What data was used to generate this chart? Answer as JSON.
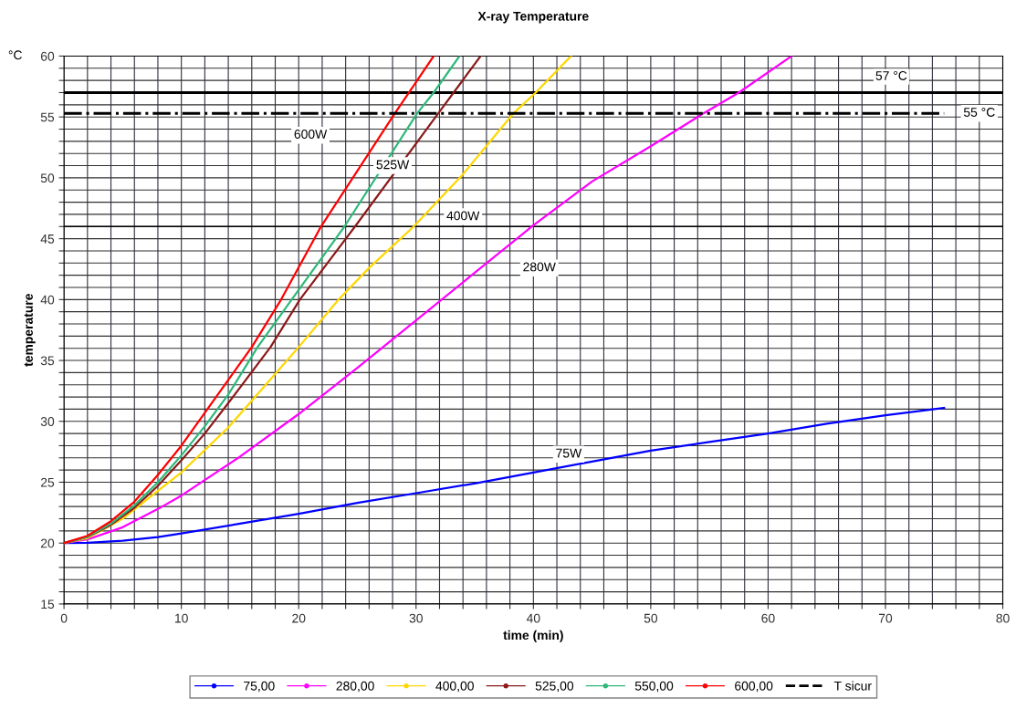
{
  "chart_data": {
    "type": "line",
    "title": "X-ray Temperature",
    "xlabel": "time (min)",
    "ylabel": "temperature",
    "xlim": [
      0,
      80
    ],
    "ylim": [
      15,
      60
    ],
    "xticks": [
      0,
      {
        "value": 2,
        "label": null
      },
      {
        "value": 4,
        "label": null
      },
      {
        "value": 6,
        "label": null
      },
      {
        "value": 8,
        "label": null
      },
      10,
      {
        "value": 12,
        "label": null
      },
      {
        "value": 14,
        "label": null
      },
      {
        "value": 16,
        "label": null
      },
      {
        "value": 18,
        "label": null
      },
      20,
      {
        "value": 22,
        "label": null
      },
      {
        "value": 24,
        "label": null
      },
      {
        "value": 26,
        "label": null
      },
      {
        "value": 28,
        "label": null
      },
      30,
      {
        "value": 32,
        "label": null
      },
      {
        "value": 34,
        "label": null
      },
      {
        "value": 36,
        "label": null
      },
      {
        "value": 38,
        "label": null
      },
      40,
      {
        "value": 42,
        "label": null
      },
      {
        "value": 44,
        "label": null
      },
      {
        "value": 46,
        "label": null
      },
      {
        "value": 48,
        "label": null
      },
      50,
      {
        "value": 52,
        "label": null
      },
      {
        "value": 54,
        "label": null
      },
      {
        "value": 56,
        "label": null
      },
      {
        "value": 58,
        "label": null
      },
      60,
      {
        "value": 62,
        "label": null
      },
      {
        "value": 64,
        "label": null
      },
      {
        "value": 66,
        "label": null
      },
      {
        "value": 68,
        "label": null
      },
      70,
      {
        "value": 72,
        "label": null
      },
      {
        "value": 74,
        "label": null
      },
      {
        "value": 76,
        "label": null
      },
      {
        "value": 78,
        "label": null
      },
      80
    ],
    "yticks": [
      15,
      {
        "value": 16,
        "label": null
      },
      {
        "value": 17,
        "label": null
      },
      {
        "value": 18,
        "label": null
      },
      {
        "value": 19,
        "label": null
      },
      20,
      {
        "value": 21,
        "label": null
      },
      {
        "value": 22,
        "label": null
      },
      {
        "value": 23,
        "label": null
      },
      {
        "value": 24,
        "label": null
      },
      25,
      {
        "value": 26,
        "label": null
      },
      {
        "value": 27,
        "label": null
      },
      {
        "value": 28,
        "label": null
      },
      {
        "value": 29,
        "label": null
      },
      30,
      {
        "value": 31,
        "label": null
      },
      {
        "value": 32,
        "label": null
      },
      {
        "value": 33,
        "label": null
      },
      {
        "value": 34,
        "label": null
      },
      35,
      {
        "value": 36,
        "label": null
      },
      {
        "value": 37,
        "label": null
      },
      {
        "value": 38,
        "label": null
      },
      {
        "value": 39,
        "label": null
      },
      40,
      {
        "value": 41,
        "label": null
      },
      {
        "value": 42,
        "label": null
      },
      {
        "value": 43,
        "label": null
      },
      {
        "value": 44,
        "label": null
      },
      45,
      {
        "value": 46,
        "label": null
      },
      {
        "value": 47,
        "label": null
      },
      {
        "value": 48,
        "label": null
      },
      {
        "value": 49,
        "label": null
      },
      50,
      {
        "value": 51,
        "label": null
      },
      {
        "value": 52,
        "label": null
      },
      {
        "value": 53,
        "label": null
      },
      {
        "value": 54,
        "label": null
      },
      55,
      {
        "value": 56,
        "label": null
      },
      {
        "value": 57,
        "label": null
      },
      {
        "value": 58,
        "label": null
      },
      {
        "value": 59,
        "label": null
      },
      60
    ],
    "grid": true,
    "legend": "bottom",
    "line_style": "solid",
    "series": [
      {
        "name": "75,00",
        "color": "#0000ff",
        "x": [
          0,
          2,
          5,
          8,
          10,
          15,
          20,
          25,
          30,
          35,
          40,
          45,
          50,
          55,
          60,
          65,
          70,
          75
        ],
        "values": [
          20,
          20.02,
          20.2,
          20.5,
          20.8,
          21.6,
          22.4,
          23.3,
          24.1,
          24.9,
          25.8,
          26.7,
          27.6,
          28.3,
          29.0,
          29.8,
          30.5,
          31.1
        ]
      },
      {
        "name": "280,00",
        "color": "#ff00ff",
        "x": [
          0,
          2,
          5,
          8,
          10,
          15,
          20,
          25,
          30,
          35,
          40,
          45,
          50,
          54.5,
          57.5,
          62
        ],
        "values": [
          20,
          20.3,
          21.3,
          22.8,
          23.9,
          27.1,
          30.6,
          34.4,
          38.3,
          42.2,
          46.1,
          49.7,
          52.6,
          55.3,
          57,
          60
        ]
      },
      {
        "name": "400,00",
        "color": "#ffd700",
        "x": [
          0,
          2,
          5,
          8,
          10,
          14,
          17,
          20,
          23.4,
          26,
          29.8,
          34,
          38.3,
          40.2,
          43.2
        ],
        "values": [
          20,
          20.4,
          22.0,
          24.3,
          25.8,
          29.5,
          32.8,
          36.1,
          40,
          42.6,
          46,
          50.3,
          55.3,
          57,
          60
        ]
      },
      {
        "name": "525,00",
        "color": "#8b1a1a",
        "x": [
          0,
          2,
          4,
          6,
          8,
          10,
          12,
          14,
          17.6,
          20.1,
          24.8,
          31.9,
          33.2,
          35.5
        ],
        "values": [
          20,
          20.5,
          21.5,
          22.9,
          24.7,
          26.8,
          29.0,
          31.5,
          36.1,
          40,
          46,
          55.3,
          57,
          60
        ]
      },
      {
        "name": "550,00",
        "color": "#2eb87a",
        "x": [
          0,
          2,
          4,
          6,
          8,
          10,
          12,
          14,
          16.5,
          19.4,
          23.9,
          30.1,
          31.5,
          33.7
        ],
        "values": [
          20,
          20.5,
          21.6,
          23.1,
          25.0,
          27.2,
          29.6,
          32.2,
          36.1,
          40,
          46,
          55.3,
          57,
          60
        ]
      },
      {
        "name": "600,00",
        "color": "#ff0000",
        "x": [
          0,
          2,
          4,
          6,
          8,
          10,
          12,
          14,
          16,
          18.5,
          21.9,
          28.2,
          29.4,
          31.5
        ],
        "values": [
          20,
          20.6,
          21.8,
          23.4,
          25.6,
          28.0,
          30.7,
          33.4,
          36.1,
          40,
          46,
          55.3,
          57,
          60
        ]
      },
      {
        "name": "T sicur",
        "color": "#000000",
        "line_style": "dashed",
        "x": [
          0,
          75
        ],
        "values": [
          55.3,
          55.3
        ]
      }
    ],
    "ref_lines": [
      {
        "axis": "y",
        "value": 57,
        "label": "57 °C",
        "color": "#000000"
      },
      {
        "axis": "y",
        "value": 46,
        "color": "#000000"
      }
    ],
    "annotations": [
      "°C",
      {
        "text": "55 °C",
        "x": 78,
        "y": 55.3
      },
      {
        "text": "600W",
        "x": 21,
        "y": 53.5
      },
      {
        "text": "525W",
        "x": 28,
        "y": 51
      },
      {
        "text": "400W",
        "x": 34,
        "y": 46.8
      },
      {
        "text": "280W",
        "x": 40.5,
        "y": 42.6
      },
      {
        "text": "75W",
        "x": 43,
        "y": 27.3
      }
    ]
  }
}
